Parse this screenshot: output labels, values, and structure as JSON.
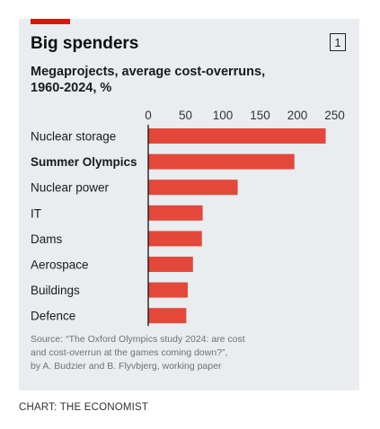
{
  "header": {
    "title": "Big spenders",
    "chart_number": "1",
    "subtitle_lines": [
      "Megaprojects, average cost-overruns,",
      "1960-2024, %"
    ]
  },
  "footer": {
    "source_lines": [
      "Source: “The Oxford Olympics study 2024: are cost",
      "and cost-overrun at the games coming down?”,",
      "by A. Budzier and B. Flyvbjerg, working paper"
    ],
    "credit": "CHART: THE ECONOMIST"
  },
  "colors": {
    "bar": "#e3483a",
    "accent": "#e3120b",
    "background": "#e9edf0"
  },
  "chart_data": {
    "type": "bar",
    "orientation": "horizontal",
    "title": "Big spenders",
    "subtitle": "Megaprojects, average cost-overruns, 1960-2024, %",
    "categories": [
      "Nuclear storage",
      "Summer Olympics",
      "Nuclear power",
      "IT",
      "Dams",
      "Aerospace",
      "Buildings",
      "Defence"
    ],
    "highlight": "Summer Olympics",
    "values": [
      238,
      196,
      120,
      73,
      72,
      60,
      53,
      51
    ],
    "xlim": [
      0,
      260
    ],
    "xticks": [
      "0",
      "50",
      "100",
      "150",
      "200",
      "250"
    ],
    "grid": false,
    "legend": "none"
  }
}
